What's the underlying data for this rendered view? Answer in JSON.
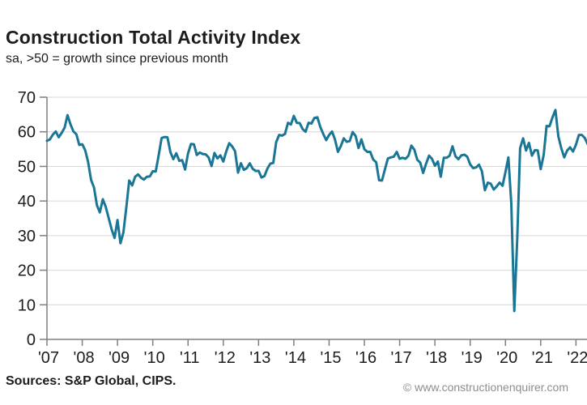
{
  "header": {
    "title": "Construction Total Activity Index",
    "subtitle": "sa, >50 = growth since previous month"
  },
  "footer": {
    "sources": "Sources: S&P Global, CIPS.",
    "watermark": "© www.constructionenquirer.com"
  },
  "colors": {
    "line": "#1a7695",
    "grid": "#d6d6d6",
    "axis": "#7f7f7f",
    "text": "#1c1c1c",
    "watermark_text": "#8d8d8d"
  },
  "chart_data": {
    "type": "line",
    "title": "Construction Total Activity Index",
    "subtitle": "sa, >50 = growth since previous month",
    "ylim": [
      0,
      70
    ],
    "y_ticks": [
      0,
      10,
      20,
      30,
      40,
      50,
      60,
      70
    ],
    "x_ticks": [
      "'07",
      "'08",
      "'09",
      "'10",
      "'11",
      "'12",
      "'13",
      "'14",
      "'15",
      "'16",
      "'17",
      "'18",
      "'19",
      "'20",
      "'21",
      "'22"
    ],
    "grid": "horizontal",
    "legend": "none",
    "series": [
      {
        "name": "Total Activity Index",
        "start": "2007-01",
        "frequency": "monthly",
        "values": [
          57.4,
          57.8,
          59.2,
          60.1,
          58.4,
          59.7,
          61.2,
          64.8,
          62.2,
          60.1,
          59.3,
          56.2,
          56.4,
          54.7,
          51.3,
          46.1,
          43.9,
          38.8,
          36.7,
          40.5,
          38.3,
          35.1,
          31.8,
          29.3,
          34.5,
          27.8,
          30.9,
          38.1,
          45.9,
          44.5,
          47.0,
          47.7,
          46.7,
          46.2,
          47.0,
          47.1,
          48.6,
          48.5,
          53.1,
          58.2,
          58.5,
          58.4,
          54.1,
          52.1,
          53.8,
          51.6,
          51.8,
          49.1,
          53.7,
          56.5,
          56.4,
          53.3,
          54.0,
          53.6,
          53.5,
          52.6,
          50.1,
          53.9,
          52.3,
          53.2,
          51.4,
          54.3,
          56.7,
          55.8,
          54.4,
          48.2,
          50.9,
          49.0,
          49.5,
          50.9,
          49.3,
          48.7,
          48.7,
          46.8,
          47.2,
          49.4,
          50.8,
          51.0,
          57.0,
          59.1,
          58.9,
          59.4,
          62.6,
          62.1,
          64.6,
          62.6,
          62.5,
          60.8,
          60.0,
          62.6,
          62.4,
          64.0,
          64.2,
          61.4,
          59.4,
          57.6,
          59.1,
          60.1,
          57.8,
          54.2,
          55.9,
          58.1,
          57.1,
          57.3,
          59.9,
          58.8,
          55.3,
          57.8,
          55.0,
          54.2,
          54.2,
          52.0,
          51.2,
          46.0,
          45.9,
          49.2,
          52.3,
          52.6,
          52.8,
          54.2,
          52.2,
          52.5,
          52.2,
          53.1,
          56.0,
          54.8,
          51.9,
          51.1,
          48.1,
          50.8,
          53.1,
          52.2,
          50.2,
          51.4,
          47.0,
          52.5,
          52.5,
          53.1,
          55.8,
          52.9,
          52.1,
          53.2,
          53.4,
          52.8,
          50.6,
          49.5,
          49.7,
          50.5,
          48.6,
          43.1,
          45.3,
          45.0,
          43.3,
          44.2,
          45.3,
          44.4,
          48.4,
          52.6,
          39.3,
          8.2,
          28.9,
          55.3,
          58.1,
          54.6,
          56.8,
          53.1,
          54.7,
          54.6,
          49.2,
          53.3,
          61.7,
          61.6,
          64.2,
          66.3,
          58.7,
          55.2,
          52.6,
          54.6,
          55.5,
          54.3,
          56.3,
          59.1,
          59.1,
          58.2,
          56.4
        ]
      }
    ]
  }
}
